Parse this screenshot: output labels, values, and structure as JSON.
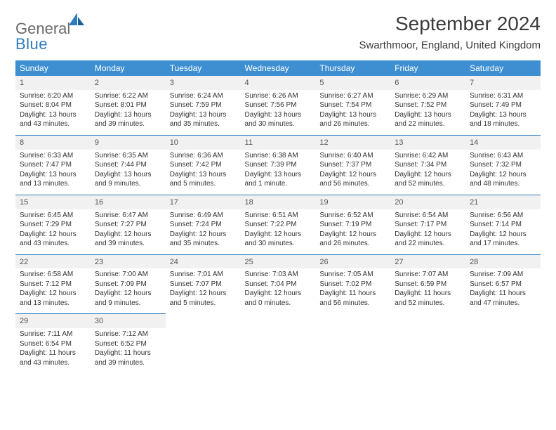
{
  "brand": {
    "part1": "General",
    "part2": "Blue"
  },
  "title": "September 2024",
  "location": "Swarthmoor, England, United Kingdom",
  "colors": {
    "header_bg": "#3d8fd1",
    "header_text": "#ffffff",
    "row_divider": "#2e7cc0",
    "daynum_bg": "#f1f1f1",
    "daynum_text": "#555555",
    "body_text": "#333333",
    "title_text": "#3a3a3a",
    "logo_gray": "#6a6a6a",
    "logo_blue": "#2e7cc0"
  },
  "day_headers": [
    "Sunday",
    "Monday",
    "Tuesday",
    "Wednesday",
    "Thursday",
    "Friday",
    "Saturday"
  ],
  "weeks": [
    [
      {
        "n": "1",
        "sr": "6:20 AM",
        "ss": "8:04 PM",
        "dl": "13 hours and 43 minutes."
      },
      {
        "n": "2",
        "sr": "6:22 AM",
        "ss": "8:01 PM",
        "dl": "13 hours and 39 minutes."
      },
      {
        "n": "3",
        "sr": "6:24 AM",
        "ss": "7:59 PM",
        "dl": "13 hours and 35 minutes."
      },
      {
        "n": "4",
        "sr": "6:26 AM",
        "ss": "7:56 PM",
        "dl": "13 hours and 30 minutes."
      },
      {
        "n": "5",
        "sr": "6:27 AM",
        "ss": "7:54 PM",
        "dl": "13 hours and 26 minutes."
      },
      {
        "n": "6",
        "sr": "6:29 AM",
        "ss": "7:52 PM",
        "dl": "13 hours and 22 minutes."
      },
      {
        "n": "7",
        "sr": "6:31 AM",
        "ss": "7:49 PM",
        "dl": "13 hours and 18 minutes."
      }
    ],
    [
      {
        "n": "8",
        "sr": "6:33 AM",
        "ss": "7:47 PM",
        "dl": "13 hours and 13 minutes."
      },
      {
        "n": "9",
        "sr": "6:35 AM",
        "ss": "7:44 PM",
        "dl": "13 hours and 9 minutes."
      },
      {
        "n": "10",
        "sr": "6:36 AM",
        "ss": "7:42 PM",
        "dl": "13 hours and 5 minutes."
      },
      {
        "n": "11",
        "sr": "6:38 AM",
        "ss": "7:39 PM",
        "dl": "13 hours and 1 minute."
      },
      {
        "n": "12",
        "sr": "6:40 AM",
        "ss": "7:37 PM",
        "dl": "12 hours and 56 minutes."
      },
      {
        "n": "13",
        "sr": "6:42 AM",
        "ss": "7:34 PM",
        "dl": "12 hours and 52 minutes."
      },
      {
        "n": "14",
        "sr": "6:43 AM",
        "ss": "7:32 PM",
        "dl": "12 hours and 48 minutes."
      }
    ],
    [
      {
        "n": "15",
        "sr": "6:45 AM",
        "ss": "7:29 PM",
        "dl": "12 hours and 43 minutes."
      },
      {
        "n": "16",
        "sr": "6:47 AM",
        "ss": "7:27 PM",
        "dl": "12 hours and 39 minutes."
      },
      {
        "n": "17",
        "sr": "6:49 AM",
        "ss": "7:24 PM",
        "dl": "12 hours and 35 minutes."
      },
      {
        "n": "18",
        "sr": "6:51 AM",
        "ss": "7:22 PM",
        "dl": "12 hours and 30 minutes."
      },
      {
        "n": "19",
        "sr": "6:52 AM",
        "ss": "7:19 PM",
        "dl": "12 hours and 26 minutes."
      },
      {
        "n": "20",
        "sr": "6:54 AM",
        "ss": "7:17 PM",
        "dl": "12 hours and 22 minutes."
      },
      {
        "n": "21",
        "sr": "6:56 AM",
        "ss": "7:14 PM",
        "dl": "12 hours and 17 minutes."
      }
    ],
    [
      {
        "n": "22",
        "sr": "6:58 AM",
        "ss": "7:12 PM",
        "dl": "12 hours and 13 minutes."
      },
      {
        "n": "23",
        "sr": "7:00 AM",
        "ss": "7:09 PM",
        "dl": "12 hours and 9 minutes."
      },
      {
        "n": "24",
        "sr": "7:01 AM",
        "ss": "7:07 PM",
        "dl": "12 hours and 5 minutes."
      },
      {
        "n": "25",
        "sr": "7:03 AM",
        "ss": "7:04 PM",
        "dl": "12 hours and 0 minutes."
      },
      {
        "n": "26",
        "sr": "7:05 AM",
        "ss": "7:02 PM",
        "dl": "11 hours and 56 minutes."
      },
      {
        "n": "27",
        "sr": "7:07 AM",
        "ss": "6:59 PM",
        "dl": "11 hours and 52 minutes."
      },
      {
        "n": "28",
        "sr": "7:09 AM",
        "ss": "6:57 PM",
        "dl": "11 hours and 47 minutes."
      }
    ],
    [
      {
        "n": "29",
        "sr": "7:11 AM",
        "ss": "6:54 PM",
        "dl": "11 hours and 43 minutes."
      },
      {
        "n": "30",
        "sr": "7:12 AM",
        "ss": "6:52 PM",
        "dl": "11 hours and 39 minutes."
      },
      null,
      null,
      null,
      null,
      null
    ]
  ],
  "labels": {
    "sunrise": "Sunrise: ",
    "sunset": "Sunset: ",
    "daylight": "Daylight: "
  }
}
